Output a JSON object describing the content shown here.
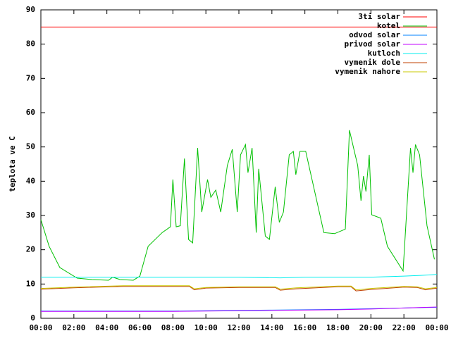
{
  "chart_data": {
    "type": "line",
    "y_label": "teplota ve C",
    "xlim": [
      0,
      24
    ],
    "xticks": [
      {
        "value": 0,
        "label": "00:00"
      },
      {
        "value": 2,
        "label": "02:00"
      },
      {
        "value": 4,
        "label": "04:00"
      },
      {
        "value": 6,
        "label": "06:00"
      },
      {
        "value": 8,
        "label": "08:00"
      },
      {
        "value": 10,
        "label": "10:00"
      },
      {
        "value": 12,
        "label": "12:00"
      },
      {
        "value": 14,
        "label": "14:00"
      },
      {
        "value": 16,
        "label": "16:00"
      },
      {
        "value": 18,
        "label": "18:00"
      },
      {
        "value": 20,
        "label": "20:00"
      },
      {
        "value": 22,
        "label": "22:00"
      },
      {
        "value": 24,
        "label": "00:00"
      }
    ],
    "ylim": [
      0,
      90
    ],
    "yticks": [
      0,
      10,
      20,
      30,
      40,
      50,
      60,
      70,
      80,
      90
    ],
    "grid": false,
    "legend": "top-right",
    "series": [
      {
        "name": "3ti solar",
        "color": "#ff0000",
        "x": [
          0,
          24
        ],
        "values": [
          85,
          85
        ]
      },
      {
        "name": "kotel",
        "color": "#00c000",
        "x": [
          0,
          0.5,
          1.15,
          2.2,
          3.1,
          4.1,
          4.35,
          4.8,
          5.6,
          6,
          6.5,
          7.35,
          7.85,
          8.0,
          8.2,
          8.45,
          8.7,
          8.95,
          9.2,
          9.5,
          9.75,
          10.1,
          10.3,
          10.6,
          10.9,
          11.3,
          11.6,
          11.9,
          12.1,
          12.4,
          12.55,
          12.8,
          13.05,
          13.2,
          13.6,
          13.85,
          14.2,
          14.45,
          14.7,
          15.05,
          15.3,
          15.45,
          15.7,
          16.05,
          17.15,
          17.8,
          18.45,
          18.7,
          18.95,
          19.2,
          19.4,
          19.55,
          19.7,
          19.9,
          20.05,
          20.6,
          21,
          21.95,
          22.4,
          22.55,
          22.7,
          22.95,
          23.4,
          23.85
        ],
        "values": [
          28.8,
          21,
          14.8,
          11.7,
          11.3,
          11.1,
          12,
          11.3,
          11.1,
          12.3,
          21,
          25,
          26.7,
          40.5,
          26.7,
          27,
          46.6,
          23,
          22,
          49.7,
          31,
          40.5,
          35.3,
          37.4,
          31,
          44.6,
          49.3,
          31,
          47.7,
          50.7,
          42.5,
          49.7,
          25,
          43.6,
          24,
          23,
          38.4,
          28,
          31,
          47.7,
          48.7,
          41.9,
          48.7,
          48.7,
          25,
          24.7,
          26,
          54.9,
          49.7,
          44.6,
          34.3,
          41.5,
          37,
          47.7,
          30.2,
          29.2,
          21,
          13.8,
          49.7,
          42.5,
          50.7,
          47.7,
          27,
          17.2
        ]
      },
      {
        "name": "odvod solar",
        "color": "#0080ff",
        "x": [
          0,
          3,
          8,
          10,
          14,
          18,
          20,
          22,
          24
        ],
        "values": [
          2.1,
          2.1,
          2.1,
          2.2,
          2.4,
          2.6,
          2.8,
          3.0,
          3.2
        ]
      },
      {
        "name": "privod solar",
        "color": "#c000ff",
        "x": [
          0,
          3,
          8,
          10,
          14,
          18,
          20,
          22,
          24
        ],
        "values": [
          2.0,
          2.0,
          2.0,
          2.1,
          2.3,
          2.5,
          2.7,
          3.0,
          3.3
        ]
      },
      {
        "name": "kutloch",
        "color": "#00eeee",
        "x": [
          0,
          4,
          8,
          12,
          14.5,
          16,
          20,
          22,
          23,
          24
        ],
        "values": [
          12,
          12,
          12,
          12,
          11.8,
          12,
          12,
          12.3,
          12.5,
          12.8
        ]
      },
      {
        "name": "vymenik dole",
        "color": "#c04000",
        "x": [
          0,
          2,
          5,
          9,
          9.3,
          10,
          12,
          14.2,
          14.5,
          15.5,
          18,
          18.8,
          19.1,
          20,
          22,
          22.8,
          23.3,
          24
        ],
        "values": [
          8.5,
          8.9,
          9.3,
          9.3,
          8.3,
          8.8,
          9.0,
          9.0,
          8.2,
          8.6,
          9.2,
          9.2,
          8.0,
          8.4,
          9.1,
          9.0,
          8.3,
          8.8
        ]
      },
      {
        "name": "vymenik nahore",
        "color": "#c8c800",
        "x": [
          0,
          2,
          5,
          9,
          9.3,
          10,
          12,
          14.2,
          14.5,
          15.5,
          18,
          18.8,
          19.1,
          20,
          22,
          22.8,
          23.3,
          24
        ],
        "values": [
          8.7,
          9.1,
          9.5,
          9.5,
          8.6,
          9.0,
          9.2,
          9.2,
          8.5,
          8.9,
          9.4,
          9.4,
          8.3,
          8.7,
          9.3,
          9.2,
          8.6,
          9.0
        ]
      }
    ]
  }
}
